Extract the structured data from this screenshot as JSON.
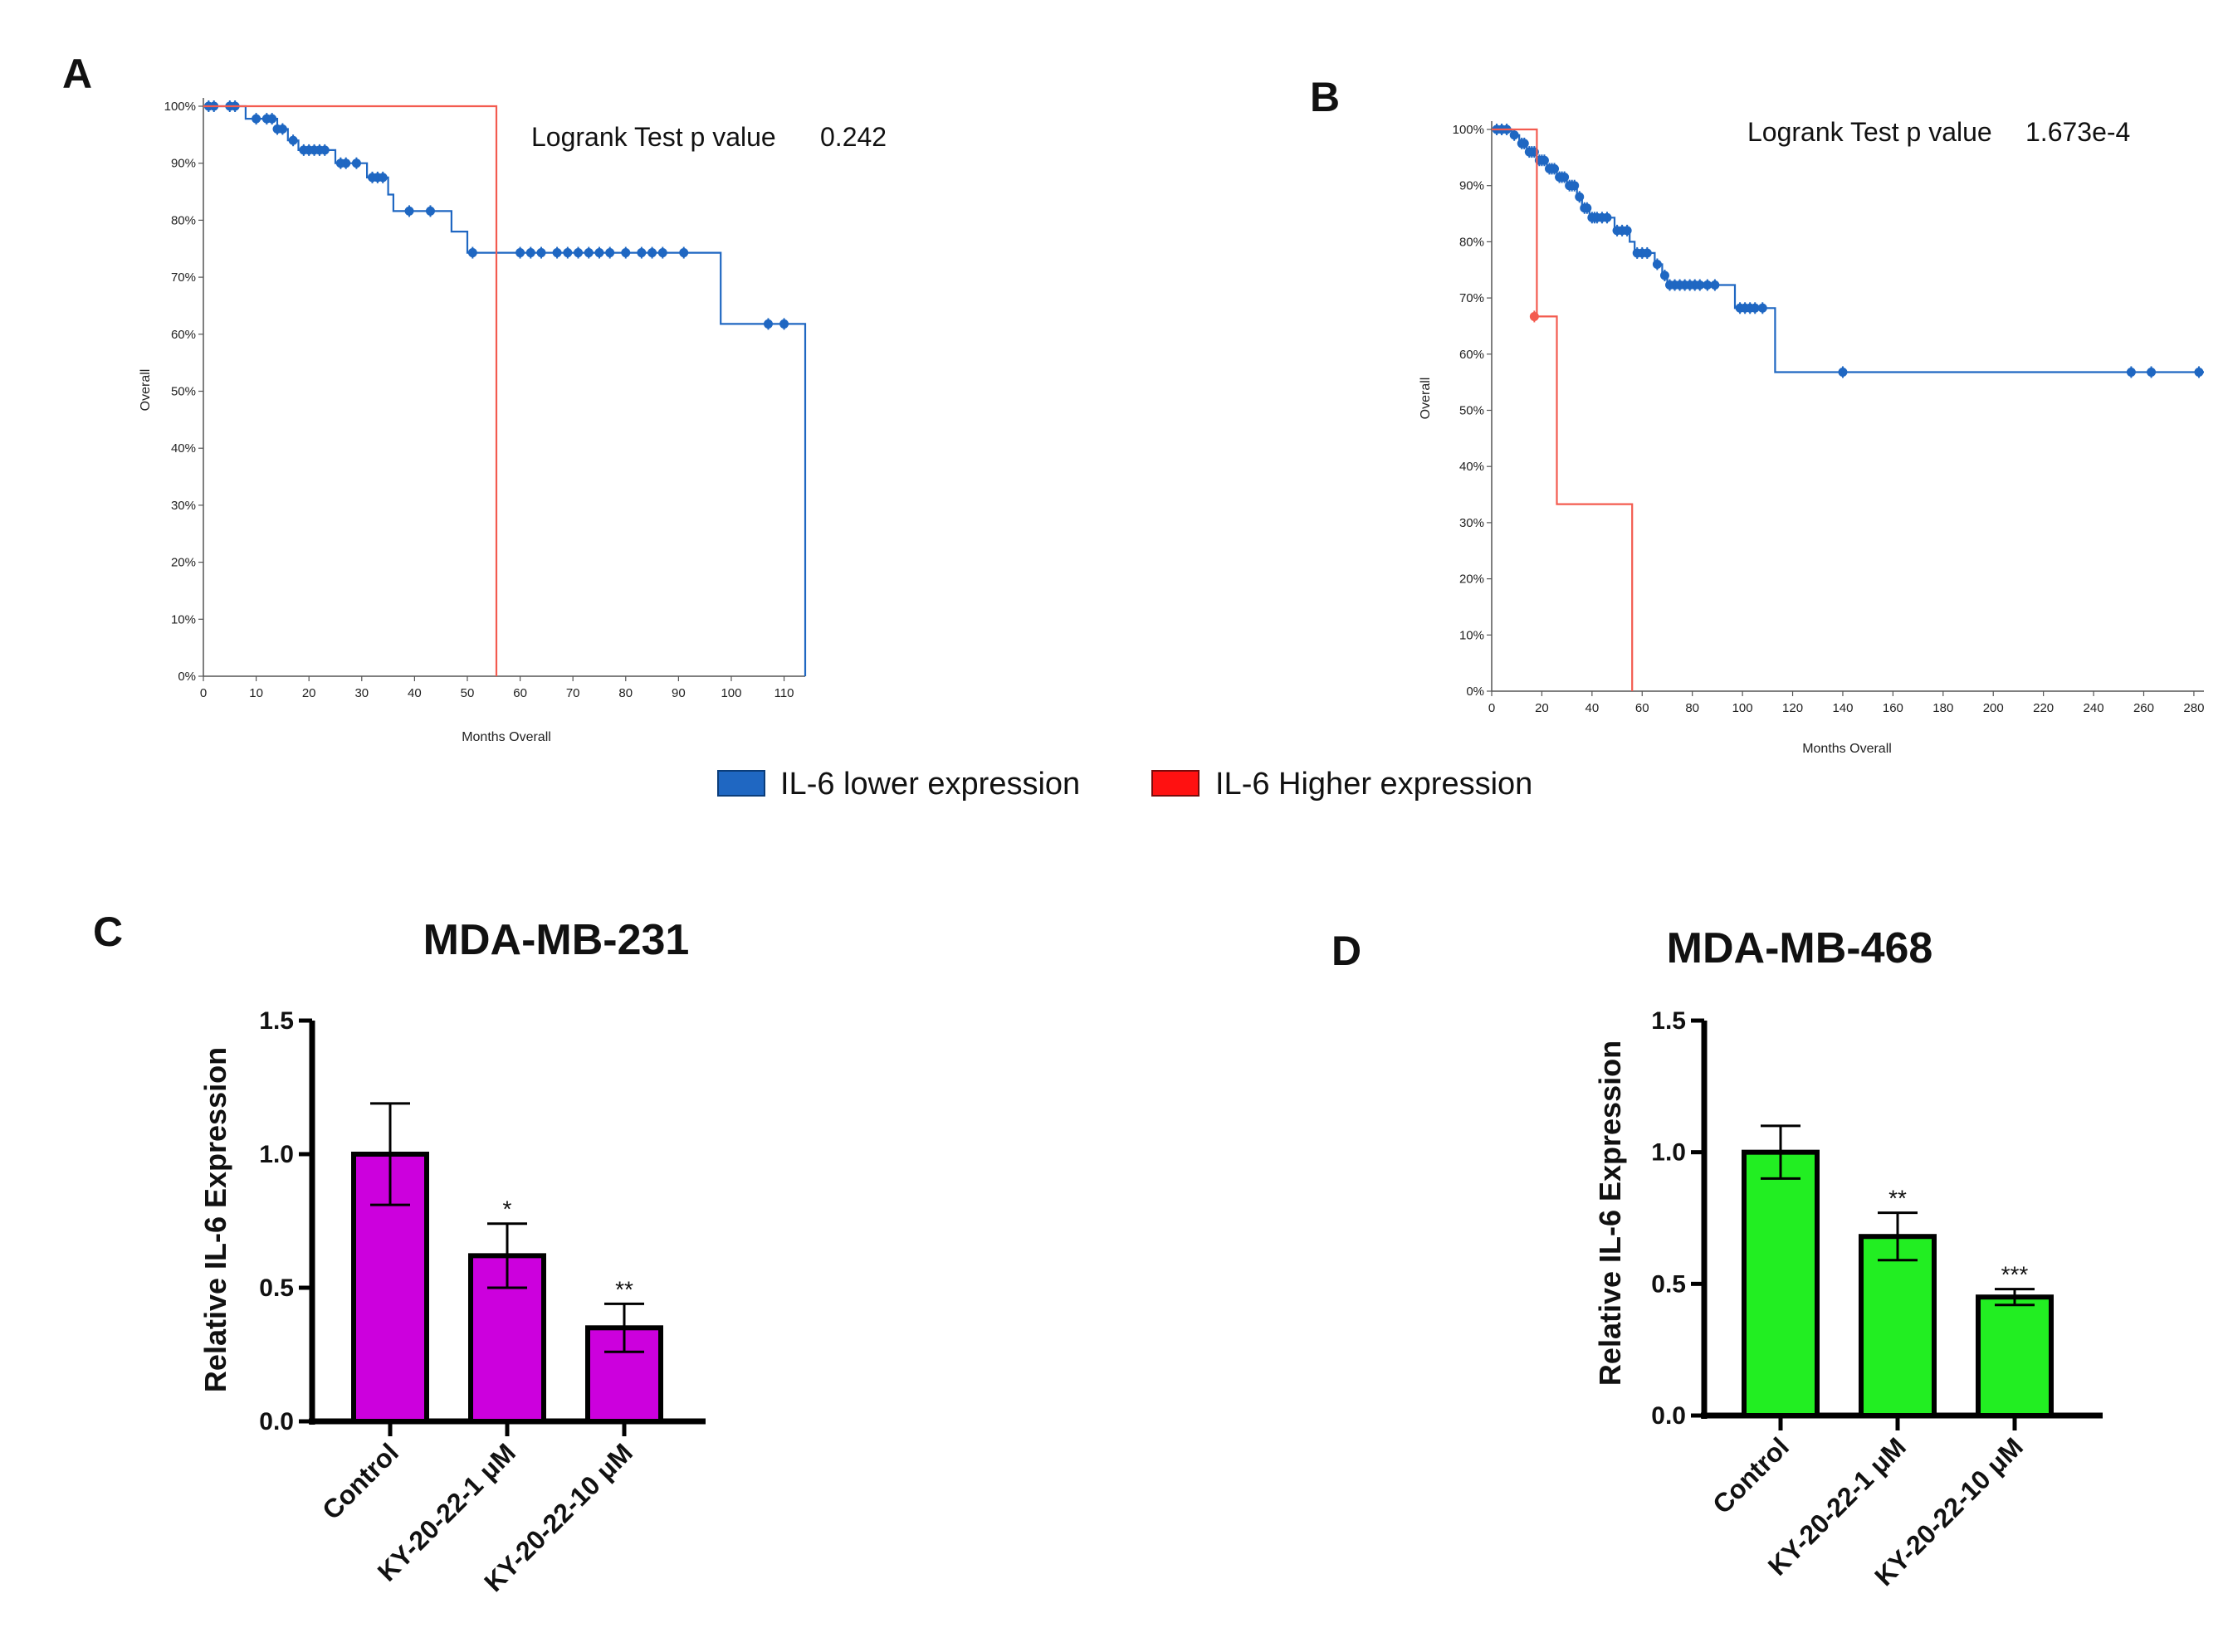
{
  "colors": {
    "low": "#1f67c2",
    "high": "#f35b4f",
    "purple": "#cc00dd",
    "green": "#22ee22",
    "legend_red": "#ff1111"
  },
  "legend": {
    "low_label": "IL-6 lower expression",
    "high_label": "IL-6 Higher expression"
  },
  "chart_data": [
    {
      "panel": "A",
      "type": "line",
      "subtype": "kaplan-meier",
      "title": "",
      "annotation": {
        "label": "Logrank Test  p value",
        "value": "0.242"
      },
      "xlabel": "Months Overall",
      "ylabel": "Overall",
      "xlim": [
        0,
        114
      ],
      "ylim": [
        0,
        100
      ],
      "x_ticks": [
        0,
        10,
        20,
        30,
        40,
        50,
        60,
        70,
        80,
        90,
        100,
        110
      ],
      "x_tick_labels": [
        "0",
        "10",
        "20",
        "30",
        "40",
        "50",
        "60",
        "70",
        "80",
        "90",
        "100",
        "110"
      ],
      "y_ticks": [
        0,
        10,
        20,
        30,
        40,
        50,
        60,
        70,
        80,
        90,
        100
      ],
      "y_tick_labels": [
        "0%",
        "10%",
        "20%",
        "30%",
        "40%",
        "50%",
        "60%",
        "70%",
        "80%",
        "90%",
        "100%"
      ],
      "series": [
        {
          "name": "IL-6 lower expression",
          "color_key": "low",
          "steps": [
            [
              0,
              100
            ],
            [
              8,
              100
            ],
            [
              8,
              97.8
            ],
            [
              14,
              97.8
            ],
            [
              14,
              96
            ],
            [
              16,
              96
            ],
            [
              16,
              94
            ],
            [
              18,
              94
            ],
            [
              18,
              92.3
            ],
            [
              25,
              92.3
            ],
            [
              25,
              90
            ],
            [
              31,
              90
            ],
            [
              31,
              87.5
            ],
            [
              35,
              87.5
            ],
            [
              35,
              84.5
            ],
            [
              36,
              84.5
            ],
            [
              36,
              81.6
            ],
            [
              47,
              81.6
            ],
            [
              47,
              78
            ],
            [
              50,
              78
            ],
            [
              50,
              74.3
            ],
            [
              98,
              74.3
            ],
            [
              98,
              61.8
            ],
            [
              114,
              61.8
            ],
            [
              114,
              0
            ]
          ],
          "censored": [
            [
              1,
              100
            ],
            [
              2,
              100
            ],
            [
              5,
              100
            ],
            [
              6,
              100
            ],
            [
              10,
              97.8
            ],
            [
              12,
              97.8
            ],
            [
              13,
              97.8
            ],
            [
              14,
              96
            ],
            [
              15,
              96
            ],
            [
              17,
              94
            ],
            [
              19,
              92.3
            ],
            [
              20,
              92.3
            ],
            [
              21,
              92.3
            ],
            [
              22,
              92.3
            ],
            [
              23,
              92.3
            ],
            [
              26,
              90
            ],
            [
              27,
              90
            ],
            [
              29,
              90
            ],
            [
              32,
              87.5
            ],
            [
              33,
              87.5
            ],
            [
              34,
              87.5
            ],
            [
              39,
              81.6
            ],
            [
              43,
              81.6
            ],
            [
              51,
              74.3
            ],
            [
              60,
              74.3
            ],
            [
              62,
              74.3
            ],
            [
              64,
              74.3
            ],
            [
              67,
              74.3
            ],
            [
              69,
              74.3
            ],
            [
              71,
              74.3
            ],
            [
              73,
              74.3
            ],
            [
              75,
              74.3
            ],
            [
              77,
              74.3
            ],
            [
              80,
              74.3
            ],
            [
              83,
              74.3
            ],
            [
              85,
              74.3
            ],
            [
              87,
              74.3
            ],
            [
              91,
              74.3
            ],
            [
              107,
              61.8
            ],
            [
              110,
              61.8
            ]
          ]
        },
        {
          "name": "IL-6 Higher expression",
          "color_key": "high",
          "steps": [
            [
              0,
              100
            ],
            [
              55.5,
              100
            ],
            [
              55.5,
              0
            ]
          ],
          "censored": []
        }
      ]
    },
    {
      "panel": "B",
      "type": "line",
      "subtype": "kaplan-meier",
      "title": "",
      "annotation": {
        "label": "Logrank Test  p value",
        "value": "1.673e-4"
      },
      "xlabel": "Months Overall",
      "ylabel": "Overall",
      "xlim": [
        0,
        284
      ],
      "ylim": [
        0,
        100
      ],
      "x_ticks": [
        0,
        20,
        40,
        60,
        80,
        100,
        120,
        140,
        160,
        180,
        200,
        220,
        240,
        260,
        280
      ],
      "x_tick_labels": [
        "0",
        "20",
        "40",
        "60",
        "80",
        "100",
        "120",
        "140",
        "160",
        "180",
        "200",
        "220",
        "240",
        "260",
        "280"
      ],
      "y_ticks": [
        0,
        10,
        20,
        30,
        40,
        50,
        60,
        70,
        80,
        90,
        100
      ],
      "y_tick_labels": [
        "0%",
        "10%",
        "20%",
        "30%",
        "40%",
        "50%",
        "60%",
        "70%",
        "80%",
        "90%",
        "100%"
      ],
      "series": [
        {
          "name": "IL-6 lower expression",
          "color_key": "low",
          "steps": [
            [
              0,
              100
            ],
            [
              8,
              100
            ],
            [
              8,
              99
            ],
            [
              11,
              99
            ],
            [
              11,
              97.5
            ],
            [
              14,
              97.5
            ],
            [
              14,
              96
            ],
            [
              18,
              96
            ],
            [
              18,
              94.5
            ],
            [
              22,
              94.5
            ],
            [
              22,
              93
            ],
            [
              26,
              93
            ],
            [
              26,
              91.5
            ],
            [
              30,
              91.5
            ],
            [
              30,
              90
            ],
            [
              34,
              90
            ],
            [
              34,
              88
            ],
            [
              36,
              88
            ],
            [
              36,
              86
            ],
            [
              39,
              86
            ],
            [
              39,
              84.3
            ],
            [
              49,
              84.3
            ],
            [
              49,
              82
            ],
            [
              55,
              82
            ],
            [
              55,
              80
            ],
            [
              57,
              80
            ],
            [
              57,
              78
            ],
            [
              65,
              78
            ],
            [
              65,
              76
            ],
            [
              68,
              76
            ],
            [
              68,
              74
            ],
            [
              70,
              74
            ],
            [
              70,
              72.3
            ],
            [
              97,
              72.3
            ],
            [
              97,
              68.2
            ],
            [
              113,
              68.2
            ],
            [
              113,
              56.8
            ],
            [
              284,
              56.8
            ]
          ],
          "censored": [
            [
              2,
              100
            ],
            [
              4,
              100
            ],
            [
              6,
              100
            ],
            [
              9,
              99
            ],
            [
              12,
              97.5
            ],
            [
              13,
              97.5
            ],
            [
              15,
              96
            ],
            [
              16,
              96
            ],
            [
              17,
              96
            ],
            [
              19,
              94.5
            ],
            [
              20,
              94.5
            ],
            [
              21,
              94.5
            ],
            [
              23,
              93
            ],
            [
              24,
              93
            ],
            [
              25,
              93
            ],
            [
              27,
              91.5
            ],
            [
              28,
              91.5
            ],
            [
              29,
              91.5
            ],
            [
              31,
              90
            ],
            [
              32,
              90
            ],
            [
              33,
              90
            ],
            [
              35,
              88
            ],
            [
              37,
              86
            ],
            [
              38,
              86
            ],
            [
              40,
              84.3
            ],
            [
              41,
              84.3
            ],
            [
              42,
              84.3
            ],
            [
              44,
              84.3
            ],
            [
              46,
              84.3
            ],
            [
              50,
              82
            ],
            [
              52,
              82
            ],
            [
              54,
              82
            ],
            [
              58,
              78
            ],
            [
              60,
              78
            ],
            [
              62,
              78
            ],
            [
              66,
              76
            ],
            [
              69,
              74
            ],
            [
              71,
              72.3
            ],
            [
              73,
              72.3
            ],
            [
              75,
              72.3
            ],
            [
              77,
              72.3
            ],
            [
              79,
              72.3
            ],
            [
              81,
              72.3
            ],
            [
              83,
              72.3
            ],
            [
              86,
              72.3
            ],
            [
              89,
              72.3
            ],
            [
              99,
              68.2
            ],
            [
              101,
              68.2
            ],
            [
              103,
              68.2
            ],
            [
              105,
              68.2
            ],
            [
              108,
              68.2
            ],
            [
              140,
              56.8
            ],
            [
              255,
              56.8
            ],
            [
              263,
              56.8
            ],
            [
              282,
              56.8
            ]
          ]
        },
        {
          "name": "IL-6 Higher expression",
          "color_key": "high",
          "steps": [
            [
              0,
              100
            ],
            [
              18,
              100
            ],
            [
              18,
              66.7
            ],
            [
              26,
              66.7
            ],
            [
              26,
              33.3
            ],
            [
              56,
              33.3
            ],
            [
              56,
              0
            ]
          ],
          "censored": [
            [
              17,
              66.7
            ]
          ]
        }
      ]
    },
    {
      "panel": "C",
      "type": "bar",
      "title": "MDA-MB-231",
      "xlabel": "",
      "ylabel": "Relative IL-6 Expression",
      "ylim": [
        0,
        1.5
      ],
      "y_ticks": [
        0,
        0.5,
        1.0,
        1.5
      ],
      "y_tick_labels": [
        "0.0",
        "0.5",
        "1.0",
        "1.5"
      ],
      "categories": [
        "Control",
        "KY-20-22-1 μM",
        "KY-20-22-10 μM"
      ],
      "values": [
        1.0,
        0.62,
        0.35
      ],
      "errors": [
        0.19,
        0.12,
        0.09
      ],
      "significance": [
        "",
        "*",
        "**"
      ],
      "color_key": "purple"
    },
    {
      "panel": "D",
      "type": "bar",
      "title": "MDA-MB-468",
      "xlabel": "",
      "ylabel": "Relative IL-6 Expression",
      "ylim": [
        0,
        1.5
      ],
      "y_ticks": [
        0,
        0.5,
        1.0,
        1.5
      ],
      "y_tick_labels": [
        "0.0",
        "0.5",
        "1.0",
        "1.5"
      ],
      "categories": [
        "Control",
        "KY-20-22-1 μM",
        "KY-20-22-10 μM"
      ],
      "values": [
        1.0,
        0.68,
        0.45
      ],
      "errors": [
        0.1,
        0.09,
        0.03
      ],
      "significance": [
        "",
        "**",
        "***"
      ],
      "color_key": "green"
    }
  ]
}
